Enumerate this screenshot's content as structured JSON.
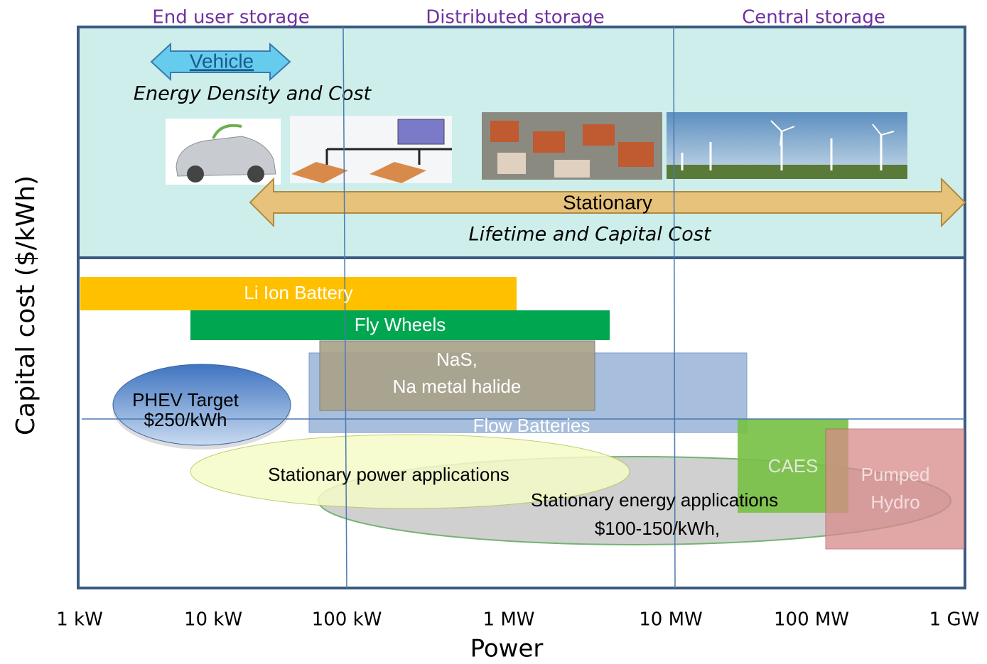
{
  "header": {
    "segments": [
      "End user storage",
      "Distributed storage",
      "Central storage"
    ]
  },
  "top_panel": {
    "vehicle": "Vehicle",
    "vehicle_note": "Energy Density and Cost",
    "stationary": "Stationary",
    "stationary_note": "Lifetime and Capital  Cost"
  },
  "technologies": {
    "li_ion": "Li Ion Battery",
    "fly_wheels": "Fly Wheels",
    "nas": [
      "NaS,",
      "Na metal halide"
    ],
    "flow": "Flow  Batteries",
    "phev": [
      "PHEV Target",
      "$250/kWh"
    ],
    "stationary_power": "Stationary power applications",
    "stationary_energy": [
      "Stationary energy applications",
      "$100-150/kWh,"
    ],
    "caes": "CAES",
    "pumped_hydro": [
      "Pumped",
      "Hydro"
    ]
  },
  "axes": {
    "x_labels": [
      "1 kW",
      "10 kW",
      "100 kW",
      "1 MW",
      "10 MW",
      "100 MW",
      "1 GW"
    ],
    "x_title": "Power",
    "y_title": "Capital cost ($/kWh)"
  }
}
